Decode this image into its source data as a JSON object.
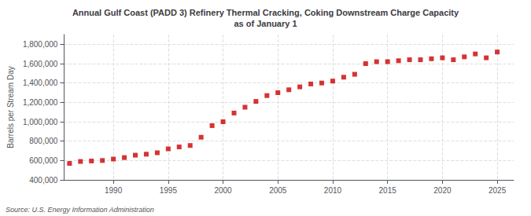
{
  "chart_data": {
    "type": "scatter",
    "title": "Annual Gulf Coast (PADD 3) Refinery Thermal Cracking, Coking Downstream Charge Capacity\nas of January 1",
    "ylabel": "Barrels per Stream Day",
    "annotation": "Source: U.S. Energy Information Administration",
    "color": "#cc0000",
    "marker": "square",
    "grid": true,
    "x": [
      1986,
      1987,
      1988,
      1989,
      1990,
      1991,
      1992,
      1993,
      1994,
      1995,
      1996,
      1997,
      1998,
      1999,
      2000,
      2001,
      2002,
      2003,
      2004,
      2005,
      2006,
      2007,
      2008,
      2009,
      2010,
      2011,
      2012,
      2013,
      2014,
      2015,
      2016,
      2017,
      2018,
      2019,
      2020,
      2021,
      2022,
      2023,
      2024,
      2025
    ],
    "values": [
      570000,
      590000,
      595000,
      600000,
      615000,
      630000,
      655000,
      665000,
      680000,
      720000,
      740000,
      755000,
      840000,
      960000,
      1000000,
      1090000,
      1150000,
      1210000,
      1270000,
      1300000,
      1330000,
      1360000,
      1390000,
      1400000,
      1420000,
      1460000,
      1490000,
      1600000,
      1620000,
      1620000,
      1630000,
      1640000,
      1640000,
      1650000,
      1660000,
      1640000,
      1670000,
      1700000,
      1660000,
      1720000
    ],
    "xlim": [
      1985.5,
      2026.5
    ],
    "xticks": [
      1990,
      1995,
      2000,
      2005,
      2010,
      2015,
      2020,
      2025
    ],
    "ylim": [
      400000,
      1900000
    ],
    "yticks": [
      {
        "value": 400000,
        "label": "400,000"
      },
      {
        "value": 600000,
        "label": "600,000"
      },
      {
        "value": 800000,
        "label": "800,000"
      },
      {
        "value": 1000000,
        "label": "1,000,000"
      },
      {
        "value": 1200000,
        "label": "1,200,000"
      },
      {
        "value": 1400000,
        "label": "1,400,000"
      },
      {
        "value": 1600000,
        "label": "1,600,000"
      },
      {
        "value": 1800000,
        "label": "1,800,000"
      }
    ]
  }
}
